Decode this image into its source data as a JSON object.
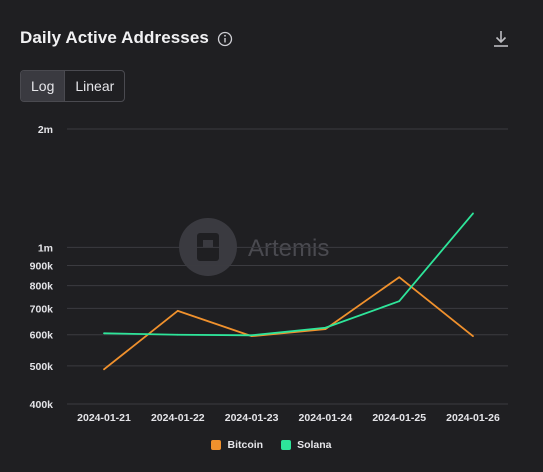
{
  "header": {
    "title": "Daily Active Addresses",
    "info_icon": "info-icon",
    "download_icon": "download-icon"
  },
  "scale_toggle": {
    "options": [
      "Log",
      "Linear"
    ],
    "selected": "Log"
  },
  "watermark": "Artemis",
  "colors": {
    "background": "#1f1f22",
    "grid": "#3b3b40",
    "bitcoin": "#f0912d",
    "solana": "#2ee59a"
  },
  "chart_data": {
    "type": "line",
    "title": "Daily Active Addresses",
    "xlabel": "",
    "ylabel": "",
    "y_scale": "log",
    "ylim": [
      400000,
      2000000
    ],
    "x": [
      "2024-01-21",
      "2024-01-22",
      "2024-01-23",
      "2024-01-24",
      "2024-01-25",
      "2024-01-26"
    ],
    "y_ticks": [
      400000,
      500000,
      600000,
      700000,
      800000,
      900000,
      1000000,
      2000000
    ],
    "y_tick_labels": [
      "400k",
      "500k",
      "600k",
      "700k",
      "800k",
      "900k",
      "1m",
      "2m"
    ],
    "grid": true,
    "legend_position": "bottom",
    "series": [
      {
        "name": "Bitcoin",
        "color": "#f0912d",
        "values": [
          490000,
          690000,
          595000,
          620000,
          840000,
          595000
        ]
      },
      {
        "name": "Solana",
        "color": "#2ee59a",
        "values": [
          605000,
          600000,
          598000,
          625000,
          730000,
          1220000
        ]
      }
    ]
  }
}
